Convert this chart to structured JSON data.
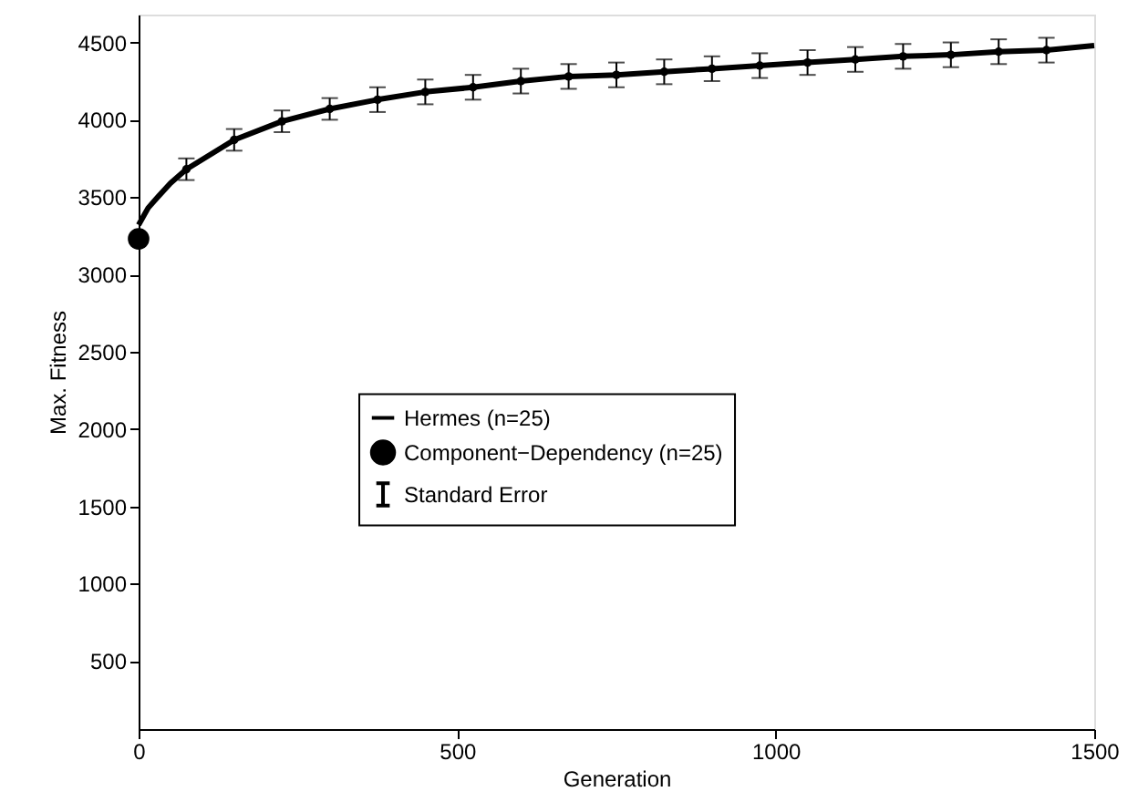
{
  "chart_data": {
    "type": "line",
    "xlabel": "Generation",
    "ylabel": "Max. Fitness",
    "xlim": [
      0,
      1500
    ],
    "ylim": [
      60,
      4680
    ],
    "xticks": [
      0,
      500,
      1000,
      1500
    ],
    "yticks": [
      500,
      1000,
      1500,
      2000,
      2500,
      3000,
      3500,
      4000,
      4500
    ],
    "grid": false,
    "legend": "center",
    "series": [
      {
        "name": "Hermes (n=25)",
        "marker": "none",
        "line_style": "solid",
        "color": "#000000",
        "x": [
          0,
          15,
          30,
          50,
          75,
          150,
          225,
          300,
          375,
          450,
          525,
          600,
          675,
          750,
          825,
          900,
          975,
          1050,
          1125,
          1200,
          1275,
          1350,
          1425,
          1500
        ],
        "values": [
          3320,
          3430,
          3500,
          3590,
          3680,
          3870,
          3990,
          4070,
          4130,
          4180,
          4210,
          4250,
          4280,
          4290,
          4310,
          4330,
          4350,
          4370,
          4390,
          4410,
          4420,
          4440,
          4450,
          4480
        ]
      },
      {
        "name": "Component−Dependency (n=25)",
        "type": "scatter",
        "marker": "circle",
        "color": "#000000",
        "x": [
          0
        ],
        "values": [
          3230
        ]
      },
      {
        "name": "Standard Error",
        "type": "scatter",
        "marker": "circle",
        "color": "#000000",
        "x": [
          75,
          150,
          225,
          300,
          375,
          450,
          525,
          600,
          675,
          750,
          825,
          900,
          975,
          1050,
          1125,
          1200,
          1275,
          1350,
          1425
        ],
        "values": [
          3680,
          3870,
          3990,
          4070,
          4130,
          4180,
          4210,
          4250,
          4280,
          4290,
          4310,
          4330,
          4350,
          4370,
          4390,
          4410,
          4420,
          4440,
          4450
        ],
        "errors": [
          70,
          70,
          70,
          70,
          80,
          80,
          80,
          80,
          80,
          80,
          80,
          80,
          80,
          80,
          80,
          80,
          80,
          80,
          80
        ]
      }
    ]
  }
}
